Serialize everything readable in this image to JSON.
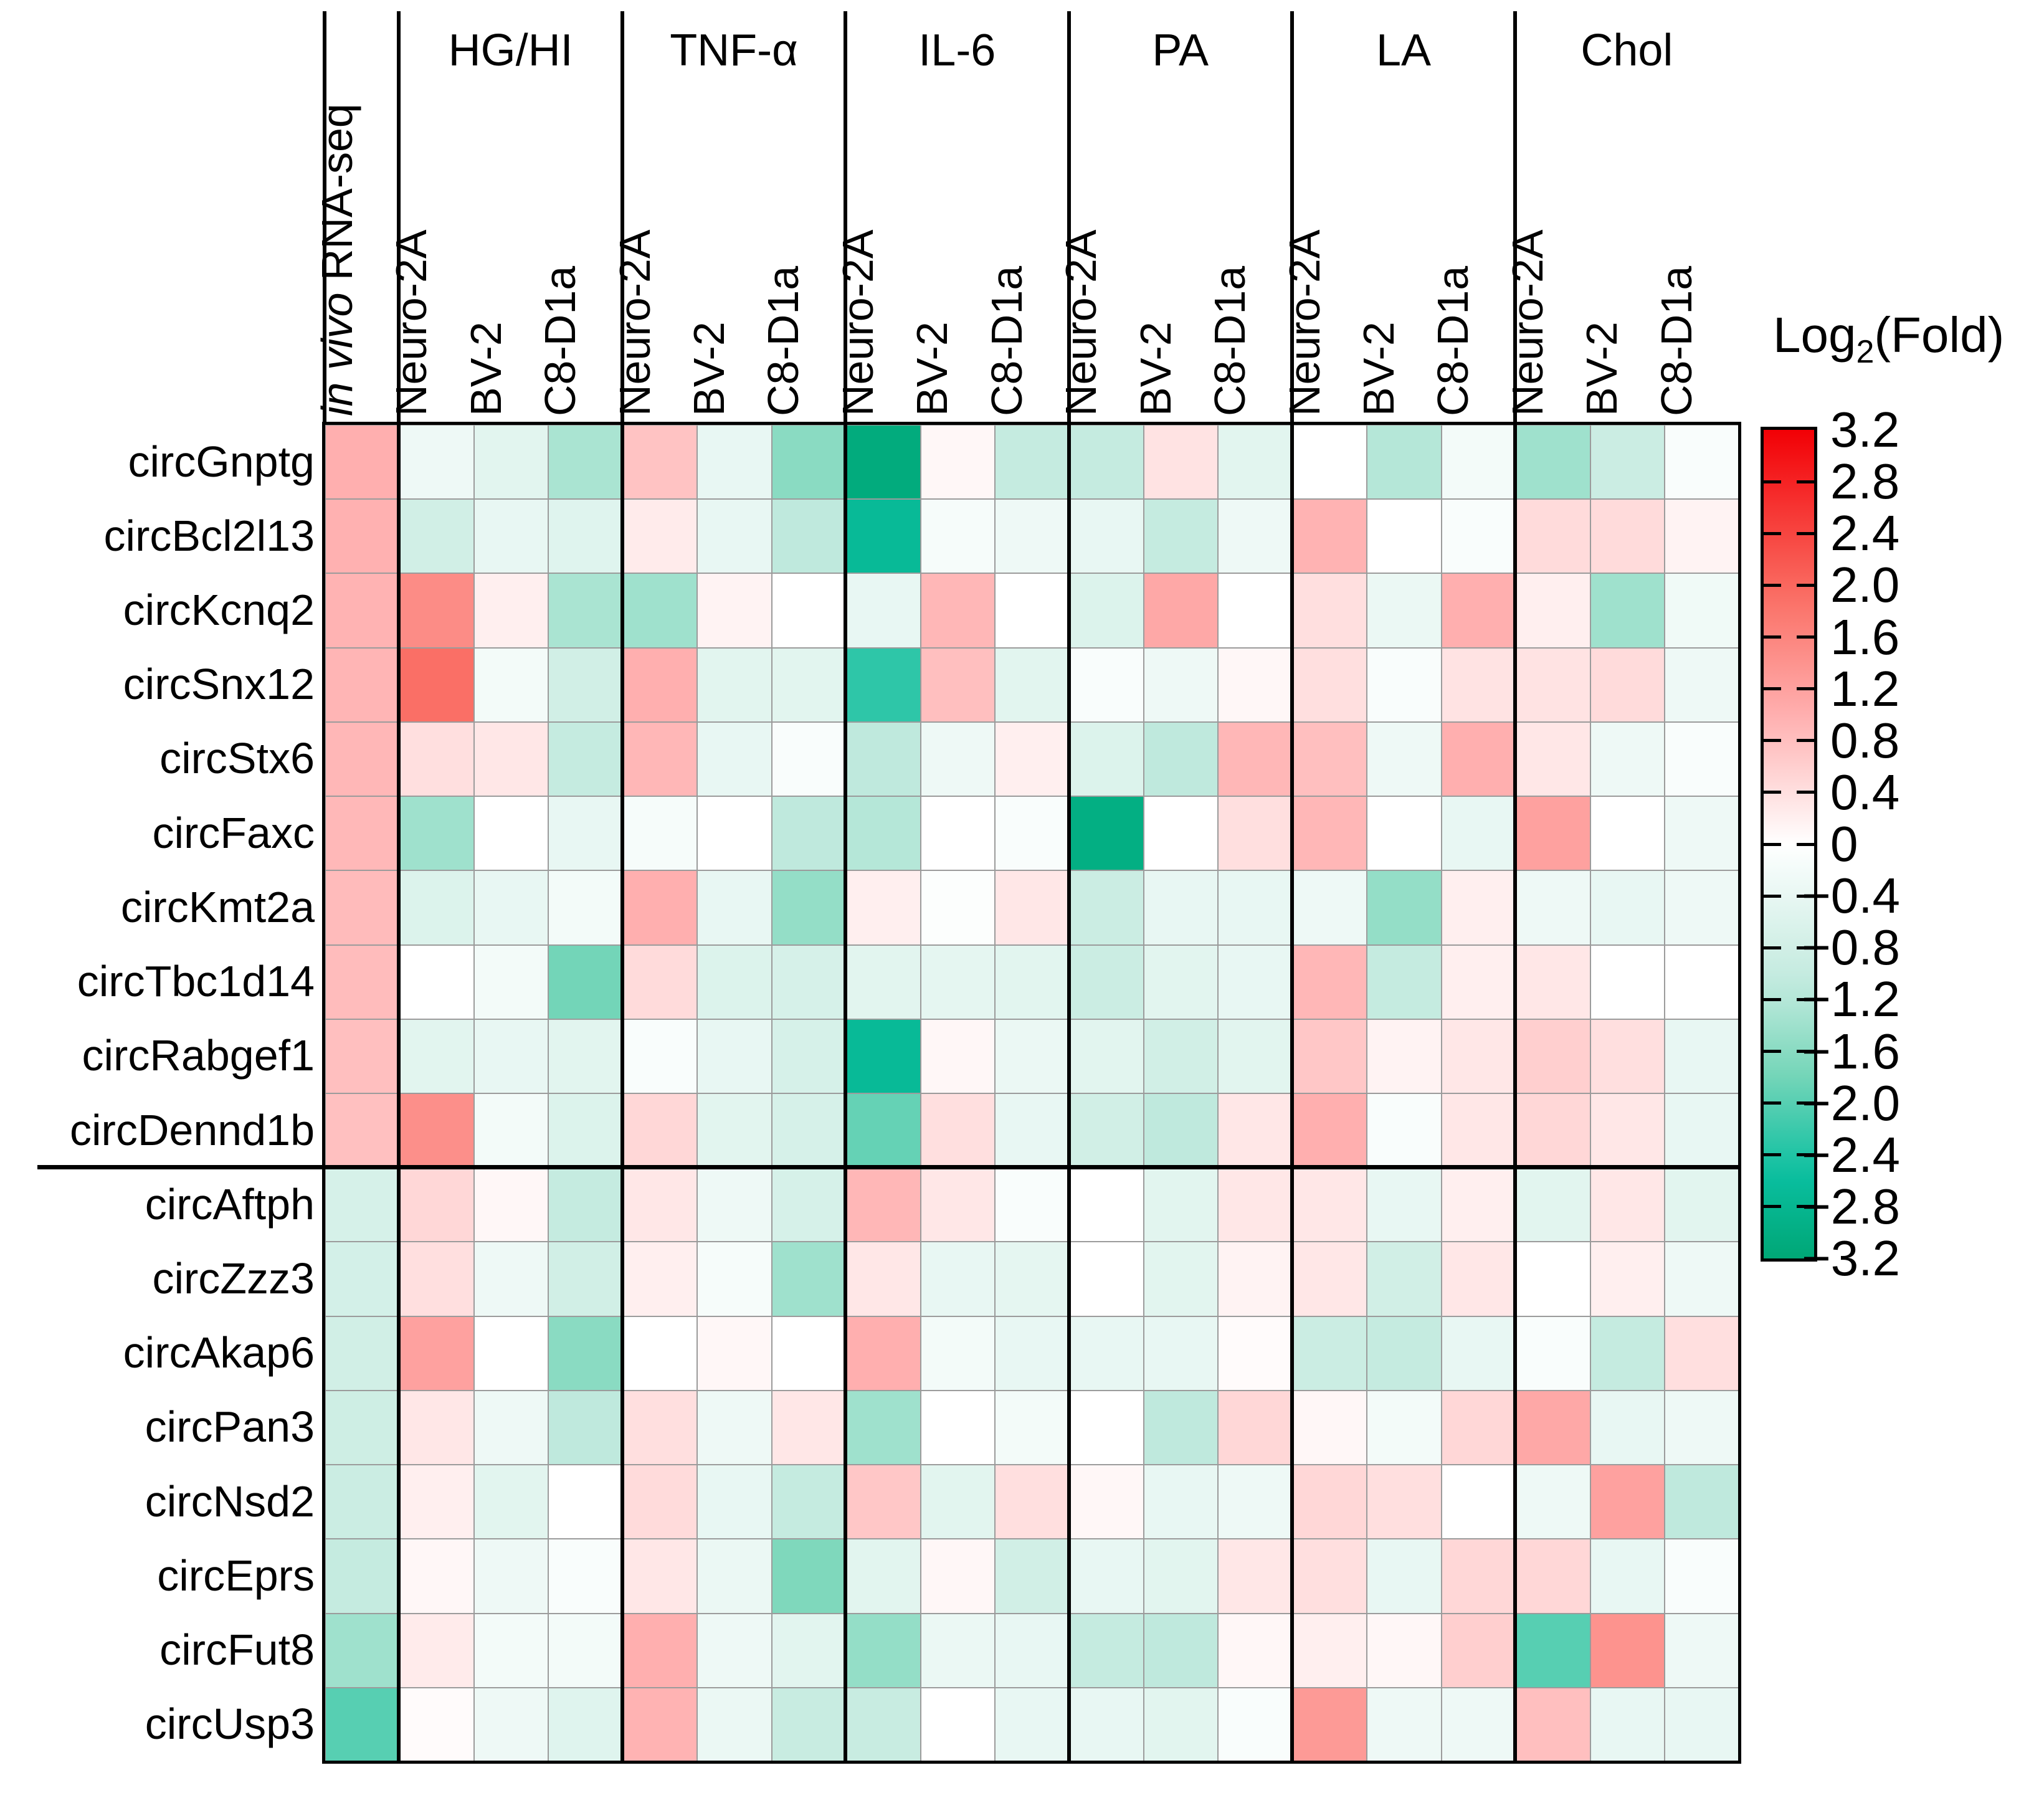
{
  "legend": {
    "title_prefix": "Log",
    "title_sub": "2",
    "title_suffix": "(Fold)",
    "tick_labels": [
      "3.2",
      "2.8",
      "2.4",
      "2.0",
      "1.6",
      "1.2",
      "0.8",
      "0.4",
      "0",
      "−0.4",
      "−0.8",
      "−1.2",
      "−1.6",
      "−2.0",
      "−2.4",
      "−2.8",
      "−3.2"
    ]
  },
  "colors": {
    "positive_max": "#F20005",
    "zero": "#FFFFFF",
    "negative_max": "#00A776",
    "gridline": "#9B9B9B",
    "frame": "#000000"
  },
  "chart_data": {
    "type": "heatmap",
    "legend_title": "Log2(Fold)",
    "value_range": [
      -3.2,
      3.2
    ],
    "column_groups": [
      {
        "label": "in vivo RNA-seq",
        "label_italic": "in vivo",
        "label_rest": " RNA-seq",
        "columns": [
          "in vivo RNA-seq"
        ]
      },
      {
        "label": "HG/HI",
        "columns": [
          "Neuro-2A",
          "BV-2",
          "C8-D1a"
        ]
      },
      {
        "label": "TNF-α",
        "columns": [
          "Neuro-2A",
          "BV-2",
          "C8-D1a"
        ]
      },
      {
        "label": "IL-6",
        "columns": [
          "Neuro-2A",
          "BV-2",
          "C8-D1a"
        ]
      },
      {
        "label": "PA",
        "columns": [
          "Neuro-2A",
          "BV-2",
          "C8-D1a"
        ]
      },
      {
        "label": "LA",
        "columns": [
          "Neuro-2A",
          "BV-2",
          "C8-D1a"
        ]
      },
      {
        "label": "Chol",
        "columns": [
          "Neuro-2A",
          "BV-2",
          "C8-D1a"
        ]
      }
    ],
    "rows": [
      "circGnptg",
      "circBcl2l13",
      "circKcnq2",
      "circSnx12",
      "circStx6",
      "circFaxc",
      "circKmt2a",
      "circTbc1d14",
      "circRabgef1",
      "circDennd1b",
      "circAftph",
      "circZzz3",
      "circAkap6",
      "circPan3",
      "circNsd2",
      "circEprs",
      "circFut8",
      "circUsp3"
    ],
    "row_group_break_after": "circDennd1b",
    "values": [
      [
        1.0,
        -0.3,
        -0.5,
        -1.3,
        0.75,
        -0.4,
        -1.6,
        -3.1,
        0.1,
        -1.0,
        -1.0,
        0.35,
        -0.5,
        0.0,
        -1.2,
        -0.2,
        -1.4,
        -0.9,
        -0.1
      ],
      [
        0.97,
        -0.8,
        -0.4,
        -0.55,
        0.25,
        -0.4,
        -1.1,
        -2.7,
        -0.15,
        -0.3,
        -0.4,
        -1.0,
        -0.3,
        0.95,
        0.0,
        -0.1,
        0.45,
        0.45,
        0.15
      ],
      [
        0.95,
        1.5,
        0.2,
        -1.3,
        -1.4,
        0.15,
        0.0,
        -0.4,
        0.9,
        0.0,
        -0.6,
        1.1,
        0.0,
        0.4,
        -0.35,
        1.0,
        0.2,
        -1.4,
        -0.25
      ],
      [
        0.92,
        1.9,
        -0.2,
        -0.8,
        1.0,
        -0.5,
        -0.5,
        -2.3,
        0.8,
        -0.5,
        -0.1,
        -0.3,
        0.1,
        0.4,
        -0.1,
        0.35,
        0.35,
        0.45,
        -0.3
      ],
      [
        0.9,
        0.4,
        0.3,
        -1.0,
        0.9,
        -0.4,
        -0.1,
        -1.1,
        -0.3,
        0.2,
        -0.6,
        -1.1,
        0.9,
        0.8,
        -0.3,
        1.0,
        0.3,
        -0.3,
        -0.1
      ],
      [
        0.88,
        -1.4,
        0.0,
        -0.4,
        -0.15,
        0.0,
        -1.1,
        -1.2,
        0.0,
        -0.1,
        -3.0,
        0.0,
        0.4,
        0.9,
        0.0,
        -0.4,
        1.2,
        0.0,
        -0.3
      ],
      [
        0.85,
        -0.6,
        -0.4,
        -0.2,
        1.0,
        -0.4,
        -1.5,
        0.2,
        -0.05,
        0.3,
        -0.9,
        -0.4,
        -0.4,
        -0.3,
        -1.5,
        0.2,
        -0.3,
        -0.4,
        -0.3
      ],
      [
        0.83,
        0.0,
        -0.2,
        -1.8,
        0.45,
        -0.6,
        -0.7,
        -0.5,
        -0.45,
        -0.5,
        -0.9,
        -0.5,
        -0.4,
        0.9,
        -1.0,
        0.2,
        0.3,
        0.0,
        0.0
      ],
      [
        0.8,
        -0.5,
        -0.4,
        -0.5,
        -0.1,
        -0.4,
        -0.7,
        -2.7,
        0.1,
        -0.35,
        -0.5,
        -0.8,
        -0.5,
        0.7,
        0.15,
        0.3,
        0.6,
        0.4,
        -0.4
      ],
      [
        0.78,
        1.45,
        -0.2,
        -0.6,
        0.5,
        -0.5,
        -0.7,
        -1.9,
        0.4,
        -0.4,
        -0.8,
        -1.1,
        0.3,
        1.0,
        -0.1,
        0.3,
        0.5,
        0.3,
        -0.4
      ],
      [
        -0.7,
        0.5,
        0.1,
        -1.0,
        0.3,
        -0.3,
        -0.7,
        0.9,
        0.3,
        -0.1,
        0.0,
        -0.5,
        0.3,
        0.3,
        -0.4,
        0.2,
        -0.5,
        0.3,
        -0.5
      ],
      [
        -0.75,
        0.4,
        -0.3,
        -0.8,
        0.2,
        -0.15,
        -1.4,
        0.3,
        -0.4,
        -0.45,
        0.0,
        -0.5,
        0.15,
        0.3,
        -0.8,
        0.3,
        0.0,
        0.2,
        -0.3
      ],
      [
        -0.8,
        1.2,
        0.0,
        -1.6,
        0.0,
        0.1,
        0.0,
        1.0,
        -0.2,
        -0.4,
        -0.4,
        -0.4,
        0.05,
        -0.9,
        -1.0,
        -0.4,
        -0.1,
        -1.0,
        0.4
      ],
      [
        -0.85,
        0.3,
        -0.3,
        -1.1,
        0.4,
        -0.3,
        0.3,
        -1.4,
        0.0,
        -0.2,
        0.0,
        -1.1,
        0.5,
        0.1,
        -0.2,
        0.5,
        1.1,
        -0.4,
        -0.3
      ],
      [
        -0.9,
        0.2,
        -0.5,
        0.0,
        0.45,
        -0.4,
        -1.0,
        0.7,
        -0.5,
        0.4,
        0.1,
        -0.4,
        -0.3,
        0.5,
        0.4,
        0.0,
        -0.3,
        1.2,
        -1.1
      ],
      [
        -1.0,
        0.1,
        -0.3,
        -0.1,
        0.3,
        -0.35,
        -1.7,
        -0.5,
        0.1,
        -0.8,
        -0.4,
        -0.5,
        0.3,
        0.4,
        -0.4,
        0.5,
        0.5,
        -0.4,
        -0.1
      ],
      [
        -1.4,
        0.25,
        -0.2,
        -0.2,
        1.0,
        -0.3,
        -0.5,
        -1.5,
        -0.35,
        -0.4,
        -1.0,
        -1.1,
        0.1,
        0.2,
        0.1,
        0.6,
        -2.0,
        1.4,
        -0.3
      ],
      [
        -2.0,
        0.05,
        -0.3,
        -0.55,
        0.95,
        -0.35,
        -0.95,
        -0.95,
        0.0,
        -0.4,
        -0.4,
        -0.5,
        -0.1,
        1.3,
        -0.3,
        -0.3,
        0.8,
        -0.4,
        -0.4
      ]
    ]
  }
}
